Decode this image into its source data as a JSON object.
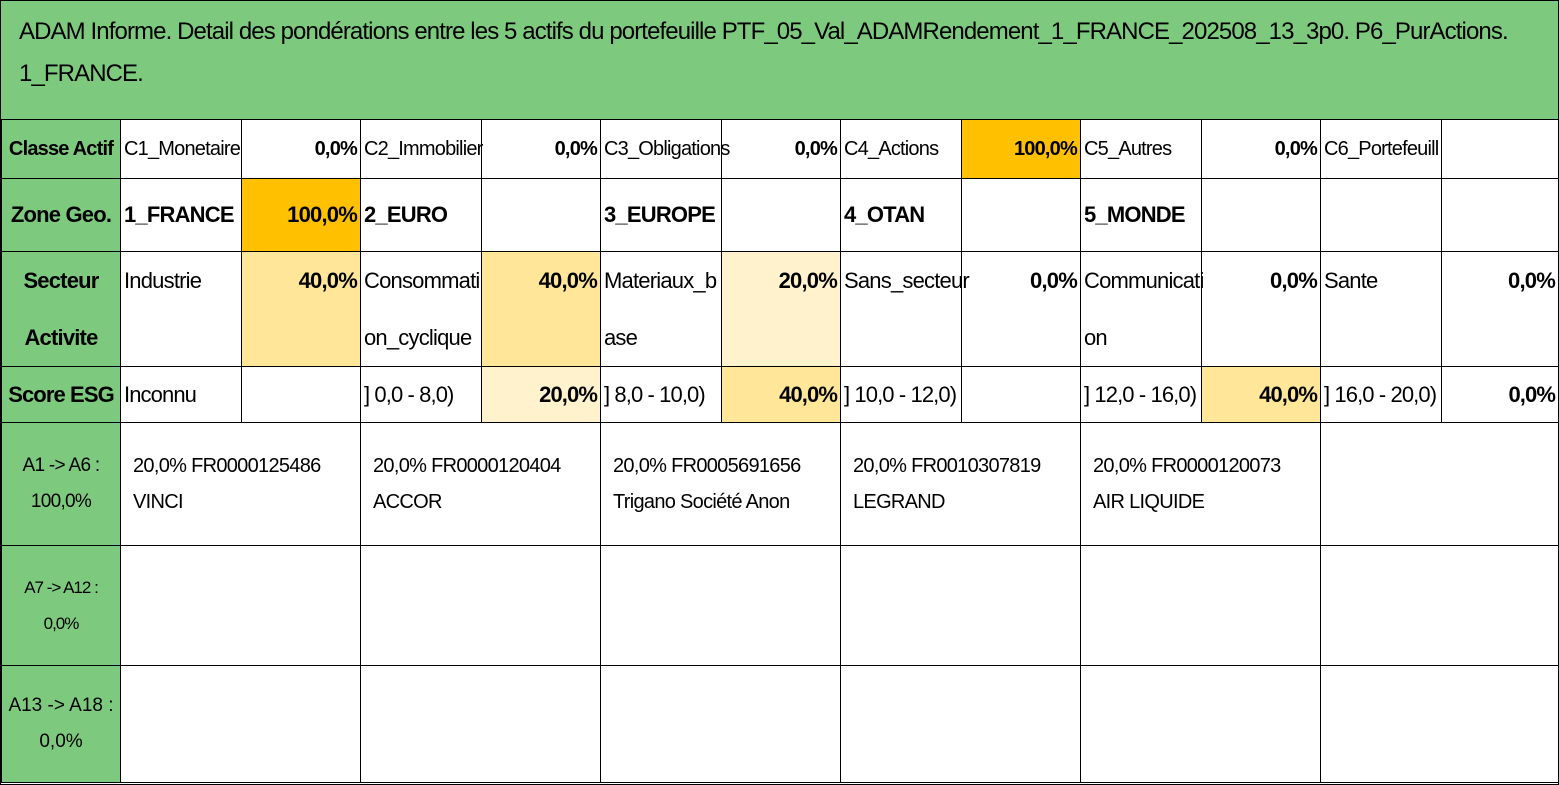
{
  "title": {
    "line1": "ADAM Informe. Detail des pondérations entre les 5 actifs du portefeuille PTF_05_Val_ADAMRendement_1_FRANCE_202508_13_3p0. P6_PurActions.",
    "line2": "1_FRANCE."
  },
  "classe": {
    "header": "Classe Actif",
    "items": [
      {
        "label": "C1_Monetaire",
        "value": "0,0%"
      },
      {
        "label": "C2_Immobilier",
        "value": "0,0%"
      },
      {
        "label": "C3_Obligations",
        "value": "0,0%"
      },
      {
        "label": "C4_Actions",
        "value": "100,0%"
      },
      {
        "label": "C5_Autres",
        "value": "0,0%"
      },
      {
        "label": "C6_Portefeuill",
        "value": ""
      }
    ]
  },
  "zone": {
    "header": "Zone Geo.",
    "items": [
      {
        "label": "1_FRANCE",
        "value": "100,0%"
      },
      {
        "label": "2_EURO",
        "value": ""
      },
      {
        "label": "3_EUROPE",
        "value": ""
      },
      {
        "label": "4_OTAN",
        "value": ""
      },
      {
        "label": "5_MONDE",
        "value": ""
      },
      {
        "label": "",
        "value": ""
      }
    ]
  },
  "secteur": {
    "header_line1": "Secteur",
    "header_line2": "Activite",
    "items": [
      {
        "label_line1": "Industrie",
        "label_line2": "",
        "value": "40,0%"
      },
      {
        "label_line1": "Consommati",
        "label_line2": "on_cyclique",
        "value": "40,0%"
      },
      {
        "label_line1": "Materiaux_b",
        "label_line2": "ase",
        "value": "20,0%"
      },
      {
        "label_line1": "Sans_secteur",
        "label_line2": "",
        "value": "0,0%"
      },
      {
        "label_line1": "Communicati",
        "label_line2": "on",
        "value": "0,0%"
      },
      {
        "label_line1": "Sante",
        "label_line2": "",
        "value": "0,0%"
      }
    ]
  },
  "esg": {
    "header": "Score ESG",
    "items": [
      {
        "label": "Inconnu",
        "value": ""
      },
      {
        "label": "] 0,0 - 8,0)",
        "value": "20,0%"
      },
      {
        "label": "] 8,0 - 10,0)",
        "value": "40,0%"
      },
      {
        "label": "] 10,0 - 12,0)",
        "value": ""
      },
      {
        "label": "] 12,0 - 16,0)",
        "value": "40,0%"
      },
      {
        "label": "] 16,0 - 20,0)",
        "value": "0,0%"
      }
    ]
  },
  "assets_a1_a6": {
    "header_line1": "A1 -> A6 :",
    "header_line2": "100,0%",
    "items": [
      {
        "line1": "20,0% FR0000125486",
        "line2": "VINCI"
      },
      {
        "line1": "20,0% FR0000120404",
        "line2": "ACCOR"
      },
      {
        "line1": "20,0% FR0005691656",
        "line2": "Trigano Société Anon"
      },
      {
        "line1": "20,0% FR0010307819",
        "line2": "LEGRAND"
      },
      {
        "line1": "20,0% FR0000120073",
        "line2": "AIR LIQUIDE"
      }
    ]
  },
  "assets_a7_a12": {
    "header": "A7 -> A12 : 0,0%"
  },
  "assets_a13_a18": {
    "header_line1": "A13 -> A18 :",
    "header_line2": "0,0%"
  }
}
